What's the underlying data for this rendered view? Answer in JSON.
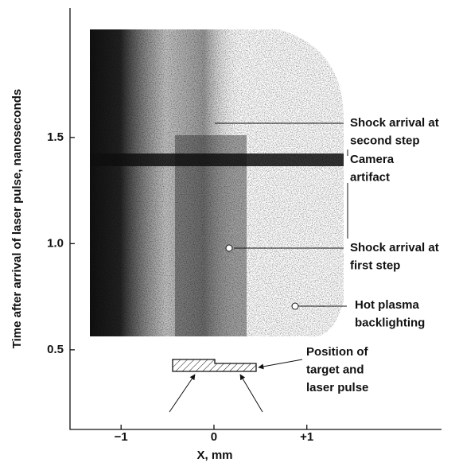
{
  "chart_data": {
    "type": "image",
    "x_label": "X, mm",
    "y_label": "Time after arrival of laser pulse, nanoseconds",
    "xlim": [
      -1.55,
      2.45
    ],
    "ylim": [
      0.125,
      2.11
    ],
    "xticks": [
      {
        "value": -1,
        "label": "−1"
      },
      0,
      {
        "value": 1,
        "label": "+1"
      }
    ],
    "yticks": [
      1.5,
      {
        "value": 1.0,
        "label": "1.0"
      },
      0.5
    ],
    "annotations": [
      {
        "lines": [
          "Shock arrival at",
          "second step"
        ]
      },
      {
        "lines": [
          "Camera",
          "artifact"
        ]
      },
      {
        "lines": [
          "Shock arrival at",
          "first step"
        ]
      },
      {
        "lines": [
          "Hot plasma",
          "backlighting"
        ]
      },
      {
        "lines": [
          "Position of",
          "target and",
          "laser pulse"
        ]
      }
    ]
  }
}
